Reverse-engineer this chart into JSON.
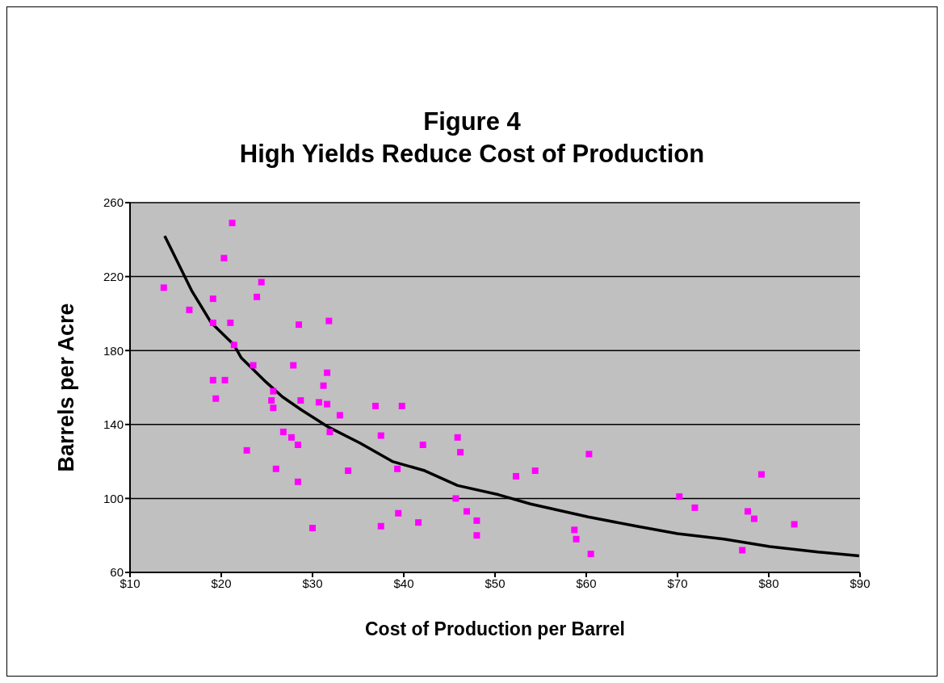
{
  "chart_data": {
    "type": "scatter",
    "title": "Figure 4\nHigh Yields Reduce Cost of Production",
    "xlabel": "Cost of Production per Barrel",
    "ylabel": "Barrels per Acre",
    "xlim": [
      10,
      90
    ],
    "xticks": [
      {
        "value": 10,
        "label": "$10"
      },
      {
        "value": 20,
        "label": "$20"
      },
      {
        "value": 30,
        "label": "$30"
      },
      {
        "value": 40,
        "label": "$40"
      },
      {
        "value": 50,
        "label": "$50"
      },
      {
        "value": 60,
        "label": "$60"
      },
      {
        "value": 70,
        "label": "$70"
      },
      {
        "value": 80,
        "label": "$80"
      },
      {
        "value": 90,
        "label": "$90"
      }
    ],
    "ylim": [
      60,
      260
    ],
    "yticks": [
      60,
      100,
      140,
      180,
      220,
      260
    ],
    "grid": "y",
    "series": [
      {
        "color": "#ff00ff",
        "marker": "square",
        "x": [
          13.7,
          16.5,
          19.1,
          19.1,
          20.3,
          21.2,
          21.0,
          21.4,
          19.1,
          20.4,
          19.4,
          22.8,
          23.9,
          24.4,
          23.5,
          25.7,
          25.5,
          25.7,
          26.8,
          27.7,
          28.4,
          26.0,
          28.4,
          30.0,
          28.5,
          27.9,
          28.7,
          31.8,
          31.6,
          31.2,
          30.7,
          31.6,
          36.9,
          39.8,
          33.0,
          31.9,
          37.5,
          42.1,
          45.9,
          46.2,
          33.9,
          39.3,
          45.7,
          46.9,
          48.0,
          48.0,
          39.4,
          41.6,
          37.5,
          60.3,
          54.4,
          52.3,
          58.7,
          58.9,
          60.5,
          70.2,
          71.9,
          79.2,
          77.7,
          78.4,
          82.8,
          77.1
        ],
        "values": [
          214,
          202,
          208,
          195,
          230,
          249,
          195,
          183,
          164,
          164,
          154,
          126,
          209,
          217,
          172,
          158,
          153,
          149,
          136,
          133,
          129,
          116,
          109,
          84,
          194,
          172,
          153,
          196,
          168,
          161,
          152,
          151,
          150,
          150,
          145,
          136,
          134,
          129,
          133,
          125,
          115,
          116,
          100,
          93,
          88,
          80,
          92,
          87,
          85,
          124,
          115,
          112,
          83,
          78,
          70,
          101,
          95,
          113,
          93,
          89,
          86,
          72
        ]
      },
      {
        "type": "line",
        "color": "#000000",
        "marker": "none",
        "line_style": "solid",
        "x": [
          13.8,
          14.6,
          16.8,
          18.9,
          21.4,
          22.2,
          24.9,
          26.7,
          28.75,
          31.6,
          35.2,
          38.75,
          42.3,
          45.9,
          50.4,
          53.9,
          60.2,
          65.5,
          70,
          75.1,
          80.1,
          85.4,
          89.9
        ],
        "values": [
          242,
          234,
          212,
          195,
          183,
          176,
          163,
          155,
          148,
          139,
          130,
          120,
          115,
          107,
          102,
          97,
          90,
          85,
          81,
          78,
          74,
          71,
          69
        ]
      }
    ]
  }
}
